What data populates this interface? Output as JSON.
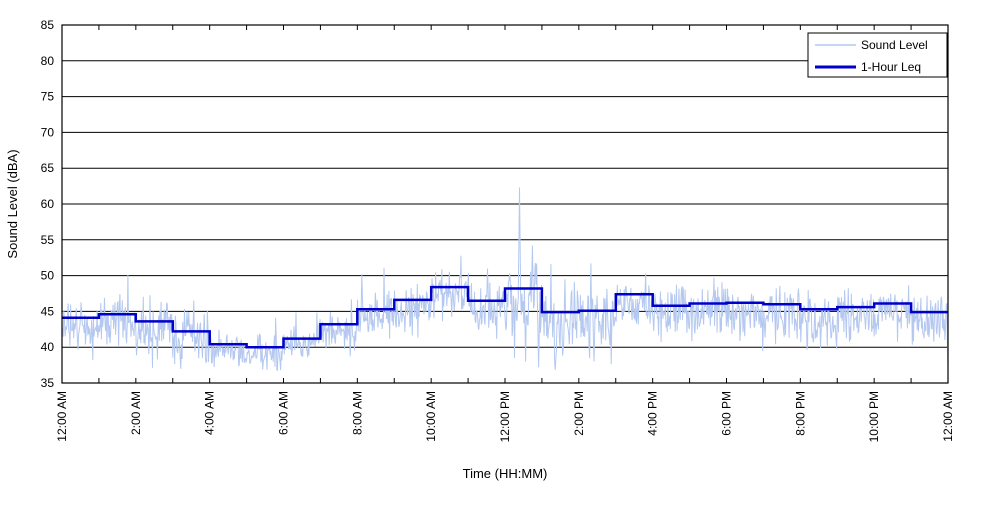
{
  "chart_data": {
    "type": "line",
    "title": "",
    "xlabel": "Time (HH:MM)",
    "ylabel": "Sound Level (dBA)",
    "x_axis": {
      "start_hour": 0,
      "end_hour": 24,
      "minor_tick_every_hours": 1,
      "tick_hours": [
        0,
        2,
        4,
        6,
        8,
        10,
        12,
        14,
        16,
        18,
        20,
        22,
        24
      ],
      "tick_labels": [
        "12:00 AM",
        "2:00 AM",
        "4:00 AM",
        "6:00 AM",
        "8:00 AM",
        "10:00 AM",
        "12:00 PM",
        "2:00 PM",
        "4:00 PM",
        "6:00 PM",
        "8:00 PM",
        "10:00 PM",
        "12:00 AM"
      ],
      "label_rotation_deg": -90
    },
    "y_axis": {
      "min": 35,
      "max": 85,
      "tick_step": 5,
      "tick_values": [
        85,
        80,
        75,
        70,
        65,
        60,
        55,
        50,
        45,
        40,
        35
      ]
    },
    "grid": "horizontal-solid-black",
    "legend": {
      "position": "top-right",
      "entries": [
        "Sound Level",
        "1-Hour Leq"
      ]
    },
    "colors": {
      "sound_level": "#b4c8f0",
      "leq": "#0000cc",
      "grid": "#000000",
      "axis": "#000000",
      "background": "#ffffff"
    },
    "series": [
      {
        "name": "Sound Level",
        "role": "raw-minute-data",
        "color_key": "sound_level",
        "hourly_spread_db": [
          2.0,
          2.2,
          2.4,
          2.4,
          1.7,
          1.6,
          1.5,
          1.8,
          2.2,
          2.4,
          2.2,
          2.4,
          3.0,
          3.2,
          2.8,
          2.4,
          2.6,
          2.4,
          2.6,
          2.6,
          2.6,
          2.2,
          2.2,
          2.6
        ],
        "events": [
          {
            "hour": 12.38,
            "value": 62.3
          },
          {
            "hour": 12.55,
            "value": 38.0
          },
          {
            "hour": 12.73,
            "value": 54.2
          },
          {
            "hour": 12.9,
            "value": 37.2
          },
          {
            "hour": 13.35,
            "value": 36.8
          },
          {
            "hour": 14.4,
            "value": 38.0
          },
          {
            "hour": 23.9,
            "value": 41.0
          },
          {
            "hour": 23.98,
            "value": 37.2
          }
        ]
      },
      {
        "name": "1-Hour Leq",
        "role": "hourly-step",
        "color_key": "leq",
        "hourly_leq_dba": [
          44.1,
          44.6,
          43.6,
          42.2,
          40.4,
          40.0,
          41.2,
          43.2,
          45.3,
          46.6,
          48.4,
          46.5,
          48.2,
          44.9,
          45.1,
          47.4,
          45.8,
          46.1,
          46.2,
          46.0,
          45.3,
          45.6,
          46.1,
          44.9
        ]
      }
    ]
  }
}
